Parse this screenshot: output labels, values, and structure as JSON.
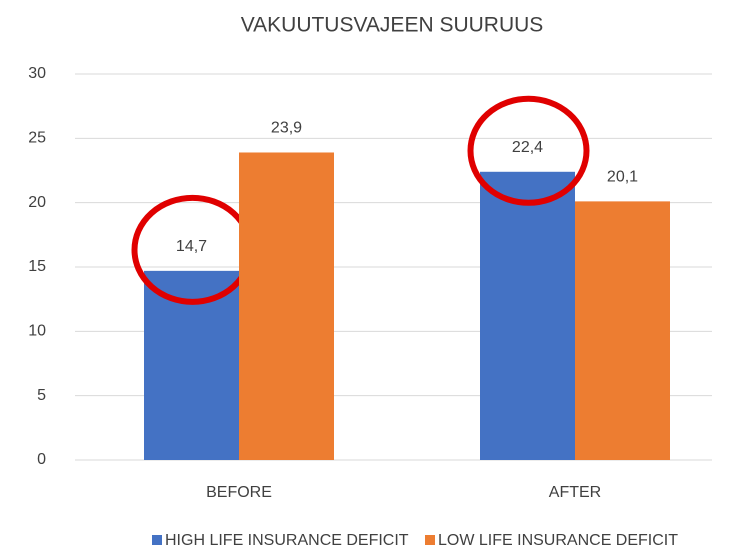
{
  "chart_data": {
    "type": "bar",
    "title": "VAKUUTUSVAJEEN SUURUUS",
    "categories": [
      "BEFORE",
      "AFTER"
    ],
    "series": [
      {
        "name": "HIGH LIFE INSURANCE DEFICIT",
        "color": "#4472c4",
        "values": [
          14.7,
          22.4
        ],
        "value_labels": [
          "14,7",
          "22,4"
        ]
      },
      {
        "name": "LOW LIFE INSURANCE DEFICIT",
        "color": "#ed7d31",
        "values": [
          23.9,
          20.1
        ],
        "value_labels": [
          "23,9",
          "20,1"
        ]
      }
    ],
    "ylim": [
      0,
      30
    ],
    "yticks": [
      0,
      5,
      10,
      15,
      20,
      25,
      30
    ],
    "grid": true,
    "legend": "bottom"
  }
}
